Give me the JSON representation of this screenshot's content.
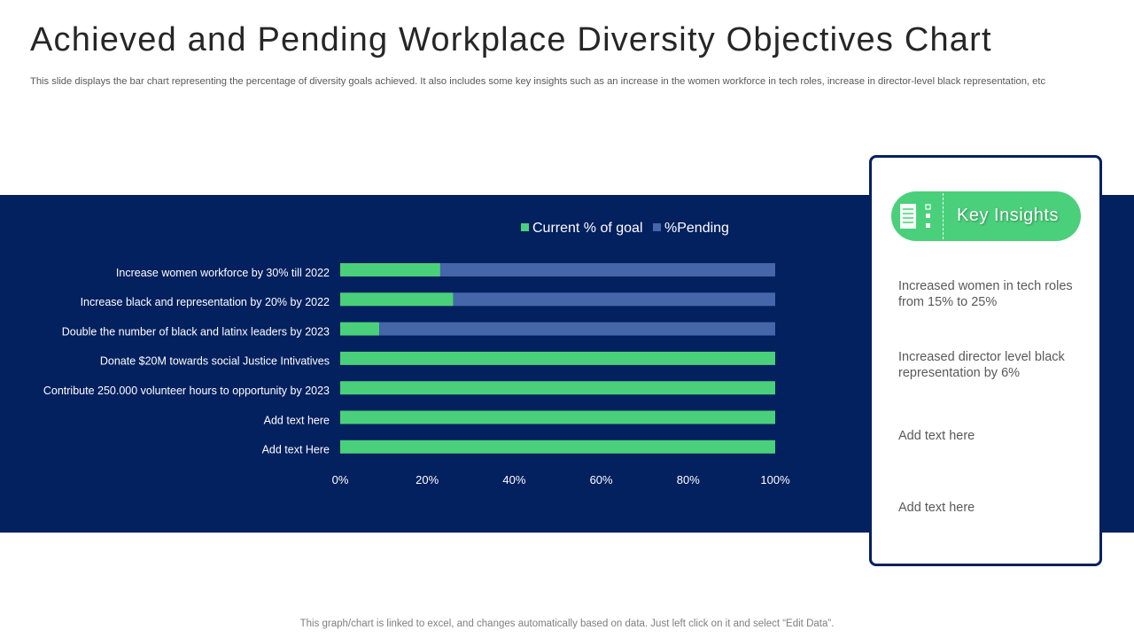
{
  "title": "Achieved and Pending Workplace Diversity Objectives Chart",
  "subtitle": "This slide displays the bar chart representing the percentage of diversity goals achieved. It also includes some key insights such as an increase in the women workforce in tech roles, increase in director-level black representation, etc",
  "colors": {
    "band": "#03205f",
    "achieved": "#4ad07a",
    "pending": "#4566a8",
    "panel_border": "#03205f"
  },
  "chart_data": {
    "type": "bar",
    "orientation": "horizontal",
    "stacked": true,
    "categories": [
      "Increase women workforce by 30% till 2022",
      "Increase black and representation by 20% by 2022",
      "Double the number of black and latinx leaders by 2023",
      "Donate $20M towards social Justice Intivatives",
      "Contribute 250.000 volunteer hours to opportunity by 2023",
      "Add text here",
      "Add text Here"
    ],
    "series": [
      {
        "name": "Current % of goal",
        "values": [
          23,
          26,
          9,
          100,
          100,
          100,
          100
        ]
      },
      {
        "name": "%Pending",
        "values": [
          77,
          74,
          91,
          0,
          0,
          0,
          0
        ]
      }
    ],
    "xlim": [
      0,
      100
    ],
    "xticks": [
      "0%",
      "20%",
      "40%",
      "60%",
      "80%",
      "100%"
    ],
    "legend_position": "top",
    "grid": false
  },
  "insights": {
    "header": "Key Insights",
    "items": [
      "Increased women in tech roles from 15% to 25%",
      "Increased director level black representation by 6%",
      "Add text here",
      "Add text here"
    ]
  },
  "footer": "This graph/chart is linked to excel,  and changes automatically based on data. Just left click on it and select “Edit Data”."
}
